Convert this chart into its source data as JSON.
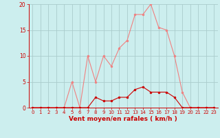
{
  "x": [
    0,
    1,
    2,
    3,
    4,
    5,
    6,
    7,
    8,
    9,
    10,
    11,
    12,
    13,
    14,
    15,
    16,
    17,
    18,
    19,
    20,
    21,
    22,
    23
  ],
  "y_light": [
    0,
    0,
    0,
    0,
    0,
    5,
    0,
    10,
    5,
    10,
    8,
    11.5,
    13,
    18,
    18,
    20,
    15.5,
    15,
    10,
    3,
    0,
    0,
    0,
    0
  ],
  "y_dark": [
    0,
    0,
    0,
    0,
    0,
    0,
    0,
    0,
    2,
    1.3,
    1.3,
    2,
    2,
    3.5,
    4,
    3,
    3,
    3,
    2,
    0,
    0,
    0,
    0,
    0
  ],
  "light_color": "#f08080",
  "dark_color": "#cc0000",
  "bg_color": "#cceeee",
  "grid_color": "#aacccc",
  "xlabel": "Vent moyen/en rafales ( km/h )",
  "xlabel_color": "#cc0000",
  "tick_color": "#cc0000",
  "ylim": [
    0,
    20
  ],
  "xlim": [
    -0.5,
    23.5
  ],
  "yticks": [
    0,
    5,
    10,
    15,
    20
  ],
  "xticks": [
    0,
    1,
    2,
    3,
    4,
    5,
    6,
    7,
    8,
    9,
    10,
    11,
    12,
    13,
    14,
    15,
    16,
    17,
    18,
    19,
    20,
    21,
    22,
    23
  ]
}
